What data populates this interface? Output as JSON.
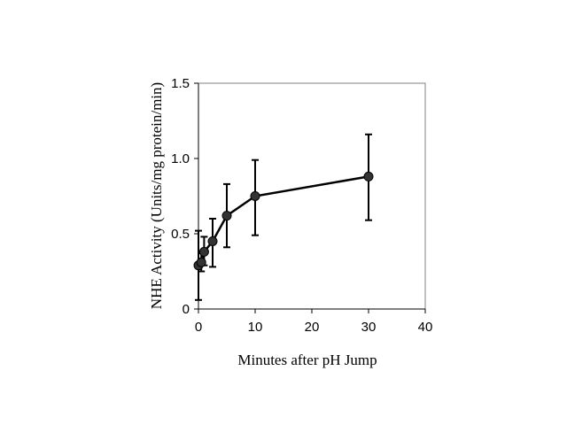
{
  "chart_data": {
    "type": "line",
    "xlabel": "Minutes after pH Jump",
    "ylabel": "NHE Activity (Units/mg protein/min)",
    "xlim": [
      0,
      40
    ],
    "ylim": [
      0,
      1.5
    ],
    "xticks": [
      0,
      10,
      20,
      30,
      40
    ],
    "yticks": [
      0,
      0.5,
      1.0,
      1.5
    ],
    "xtick_labels": [
      "0",
      "10",
      "20",
      "30",
      "40"
    ],
    "ytick_labels": [
      "0",
      "0.5",
      "1.0",
      "1.5"
    ],
    "grid": false,
    "legend": "none",
    "series": [
      {
        "x": [
          0,
          0.5,
          1,
          2.5,
          5,
          10,
          30
        ],
        "y": [
          0.29,
          0.31,
          0.38,
          0.46,
          0.62,
          0.75,
          0.88
        ],
        "y_note": "placeholder"
      }
    ],
    "colors": {
      "line": "#000000",
      "marker": "#333333"
    }
  }
}
